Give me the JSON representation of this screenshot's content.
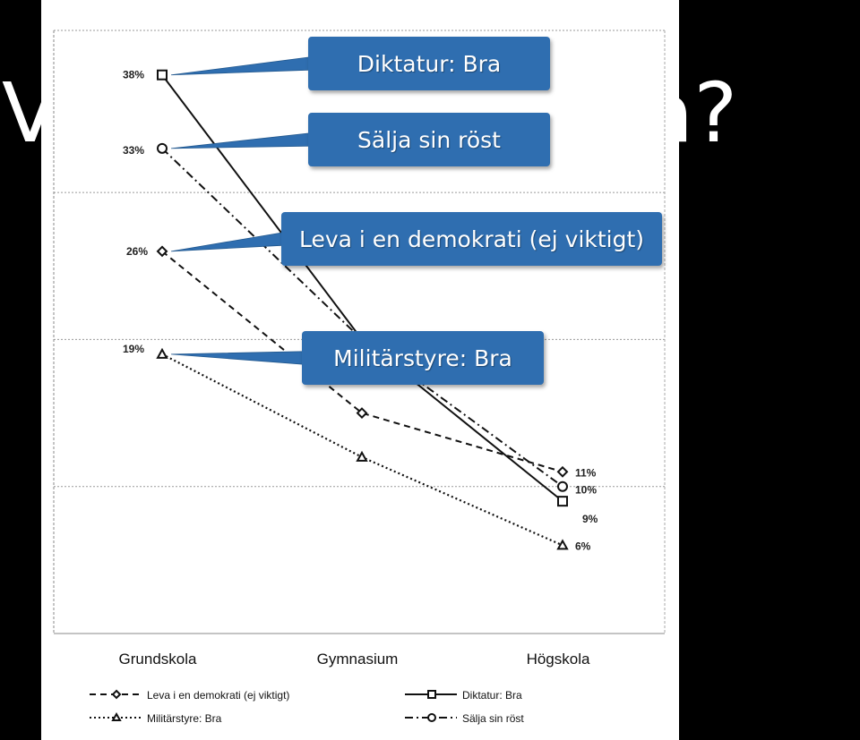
{
  "slide": {
    "title_left_fragment": "V",
    "title_right_fragment": "a?"
  },
  "callouts": [
    {
      "label": "Diktatur: Bra"
    },
    {
      "label": "Sälja sin röst"
    },
    {
      "label": "Leva i en demokrati (ej viktigt)"
    },
    {
      "label": "Militärstyre: Bra"
    }
  ],
  "colors": {
    "callout_fill": "#2f6eb0",
    "line": "#111111",
    "background": "#000000"
  },
  "chart_data": {
    "type": "line",
    "title": "",
    "xlabel": "",
    "ylabel": "",
    "categories": [
      "Grundskola",
      "Gymnasium",
      "Högskola"
    ],
    "ylim": [
      0,
      42
    ],
    "grid": true,
    "legend_position": "bottom",
    "series": [
      {
        "name": "Leva i en demokrati (ej viktigt)",
        "values": [
          26,
          15,
          11
        ],
        "dash": "dashed",
        "marker": "diamond"
      },
      {
        "name": "Diktatur: Bra",
        "values": [
          38,
          20,
          9
        ],
        "dash": "solid",
        "marker": "square"
      },
      {
        "name": "Militärstyre: Bra",
        "values": [
          19,
          12,
          6
        ],
        "dash": "dotted",
        "marker": "triangle"
      },
      {
        "name": "Sälja sin röst",
        "values": [
          33,
          20,
          10
        ],
        "dash": "dashdot",
        "marker": "circle"
      }
    ],
    "point_labels": [
      {
        "series": 0,
        "index": 0,
        "text": "26%"
      },
      {
        "series": 1,
        "index": 0,
        "text": "38%"
      },
      {
        "series": 2,
        "index": 0,
        "text": "19%"
      },
      {
        "series": 3,
        "index": 0,
        "text": "33%"
      },
      {
        "series": 0,
        "index": 2,
        "text": "11%"
      },
      {
        "series": 3,
        "index": 2,
        "text": "10%"
      },
      {
        "series": 1,
        "index": 2,
        "text": "9%"
      },
      {
        "series": 2,
        "index": 2,
        "text": "6%"
      }
    ],
    "legend": [
      {
        "label": "Leva i en demokrati (ej viktigt)"
      },
      {
        "label": "Diktatur: Bra"
      },
      {
        "label": "Militärstyre: Bra"
      },
      {
        "label": "Sälja sin röst"
      }
    ]
  }
}
